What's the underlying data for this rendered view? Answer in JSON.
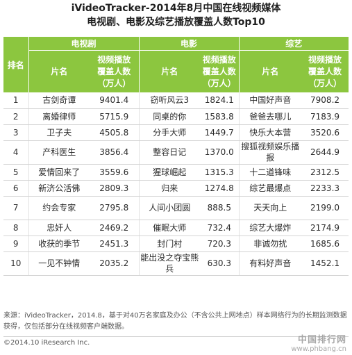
{
  "title_line1": "iVideoTracker-2014年8月中国在线视频媒体",
  "title_line2": "电视剧、电影及综艺播放覆盖人数Top10",
  "header": {
    "rank": "排名",
    "group_tv": "电视剧",
    "group_movie": "电影",
    "group_variety": "综艺",
    "col_name": "片名",
    "col_cover_l1": "视频播放",
    "col_cover_l2": "覆盖人数",
    "col_cover_l3": "（万人）"
  },
  "rows": [
    {
      "rank": "1",
      "tv_name": "古剑奇谭",
      "tv_val": "9401.4",
      "mv_name": "窃听风云3",
      "mv_val": "1824.1",
      "va_name": "中国好声音",
      "va_val": "7908.2"
    },
    {
      "rank": "2",
      "tv_name": "离婚律师",
      "tv_val": "5715.9",
      "mv_name": "同桌的你",
      "mv_val": "1583.8",
      "va_name": "爸爸去哪儿",
      "va_val": "7183.9"
    },
    {
      "rank": "3",
      "tv_name": "卫子夫",
      "tv_val": "4505.8",
      "mv_name": "分手大师",
      "mv_val": "1449.7",
      "va_name": "快乐大本营",
      "va_val": "3520.6"
    },
    {
      "rank": "4",
      "tv_name": "产科医生",
      "tv_val": "3856.4",
      "mv_name": "整容日记",
      "mv_val": "1370.0",
      "va_name": "搜狐视频娱乐播报",
      "va_val": "2644.9"
    },
    {
      "rank": "5",
      "tv_name": "爱情回来了",
      "tv_val": "3559.6",
      "mv_name": "猩球崛起",
      "mv_val": "1315.3",
      "va_name": "十二道锋味",
      "va_val": "2312.5"
    },
    {
      "rank": "6",
      "tv_name": "新济公活佛",
      "tv_val": "2809.3",
      "mv_name": "归来",
      "mv_val": "1274.8",
      "va_name": "综艺最爆点",
      "va_val": "2233.3"
    },
    {
      "rank": "7",
      "tv_name": "约会专家",
      "tv_val": "2795.8",
      "mv_name": "人间小团圆",
      "mv_val": "888.5",
      "va_name": "天天向上",
      "va_val": "2199.0"
    },
    {
      "rank": "8",
      "tv_name": "忠奸人",
      "tv_val": "2469.2",
      "mv_name": "催眠大师",
      "mv_val": "732.4",
      "va_name": "综艺大爆炸",
      "va_val": "2174.9"
    },
    {
      "rank": "9",
      "tv_name": "收获的季节",
      "tv_val": "2451.3",
      "mv_name": "封门村",
      "mv_val": "720.3",
      "va_name": "非诚勿扰",
      "va_val": "1685.6"
    },
    {
      "rank": "10",
      "tv_name": "一见不钟情",
      "tv_val": "2035.2",
      "mv_name": "能出没之夺宝熊兵",
      "mv_val": "630.3",
      "va_name": "有料好声音",
      "va_val": "1452.1"
    }
  ],
  "source_note": "来源：iVideoTracker，2014.8，基于对40万名家庭及办公（不含公共上网地点）样本网络行为的长期监测数据获得，仅包括部分在线视频客户端数据。",
  "copyright": "©2014.10 iResearch Inc.",
  "watermark_name": "中国排行网",
  "watermark_url": "www.phbang.cn"
}
